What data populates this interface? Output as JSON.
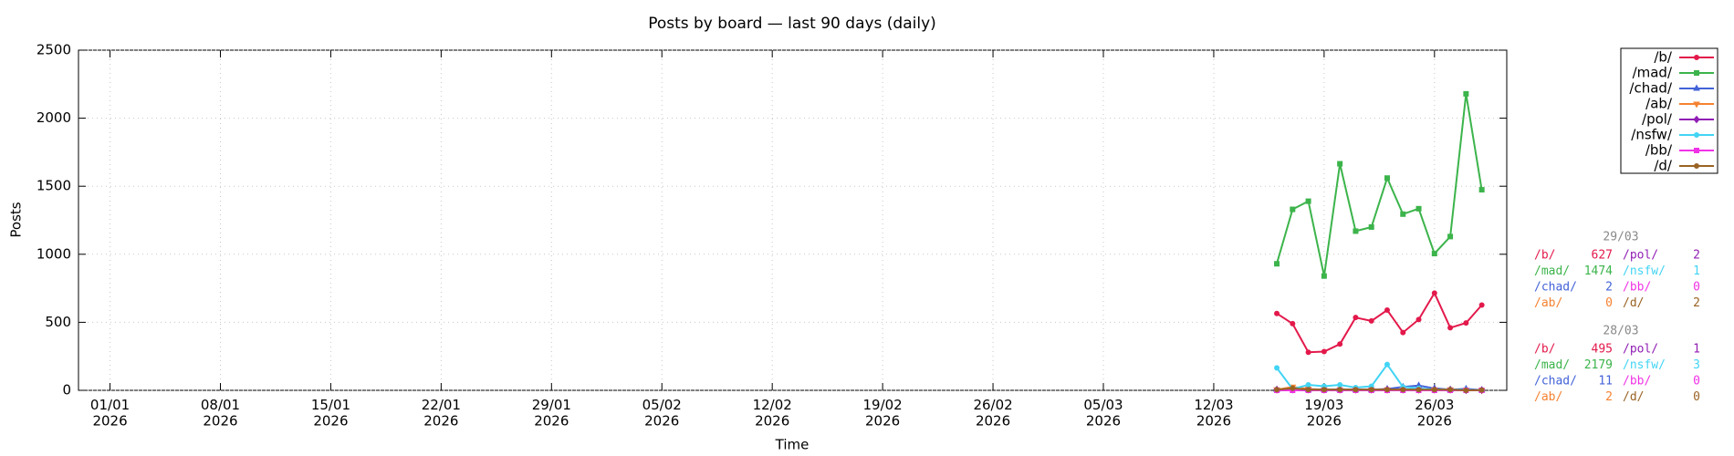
{
  "chart_data": {
    "type": "line",
    "title": "Posts by board — last 90 days (daily)",
    "xlabel": "Time",
    "ylabel": "Posts",
    "x": [
      "2026-03-16",
      "2026-03-17",
      "2026-03-18",
      "2026-03-19",
      "2026-03-20",
      "2026-03-21",
      "2026-03-22",
      "2026-03-23",
      "2026-03-24",
      "2026-03-25",
      "2026-03-26",
      "2026-03-27",
      "2026-03-28",
      "2026-03-29"
    ],
    "xlim": [
      "2025-12-30",
      "2026-03-30T14:00"
    ],
    "xticks": [
      {
        "value": "2026-01-01",
        "label": "01/01\n2026"
      },
      {
        "value": "2026-01-08",
        "label": "08/01\n2026"
      },
      {
        "value": "2026-01-15",
        "label": "15/01\n2026"
      },
      {
        "value": "2026-01-22",
        "label": "22/01\n2026"
      },
      {
        "value": "2026-01-29",
        "label": "29/01\n2026"
      },
      {
        "value": "2026-02-05",
        "label": "05/02\n2026"
      },
      {
        "value": "2026-02-12",
        "label": "12/02\n2026"
      },
      {
        "value": "2026-02-19",
        "label": "19/02\n2026"
      },
      {
        "value": "2026-02-26",
        "label": "26/02\n2026"
      },
      {
        "value": "2026-03-05",
        "label": "05/03\n2026"
      },
      {
        "value": "2026-03-12",
        "label": "12/03\n2026"
      },
      {
        "value": "2026-03-19",
        "label": "19/03\n2026"
      },
      {
        "value": "2026-03-26",
        "label": "26/03\n2026"
      }
    ],
    "ylim": [
      0,
      2500
    ],
    "yticks": [
      0,
      500,
      1000,
      1500,
      2000,
      2500
    ],
    "grid": true,
    "legend": "upper right outside",
    "series": [
      {
        "name": "/b/",
        "color": "#e3194b",
        "marker": "circle",
        "values": [
          565,
          490,
          280,
          285,
          340,
          535,
          510,
          590,
          425,
          520,
          715,
          460,
          495,
          627
        ]
      },
      {
        "name": "/mad/",
        "color": "#3cb44b",
        "marker": "square",
        "values": [
          930,
          1330,
          1390,
          840,
          1665,
          1170,
          1200,
          1560,
          1295,
          1335,
          1005,
          1130,
          2179,
          1474
        ]
      },
      {
        "name": "/chad/",
        "color": "#4363d8",
        "marker": "triangle",
        "values": [
          5,
          10,
          5,
          5,
          5,
          5,
          5,
          10,
          25,
          35,
          15,
          5,
          11,
          2
        ]
      },
      {
        "name": "/ab/",
        "color": "#f58231",
        "marker": "triangle-down",
        "values": [
          5,
          25,
          10,
          5,
          5,
          5,
          5,
          5,
          5,
          5,
          5,
          5,
          2,
          0
        ]
      },
      {
        "name": "/pol/",
        "color": "#911eb4",
        "marker": "diamond",
        "values": [
          5,
          5,
          5,
          5,
          5,
          5,
          5,
          5,
          5,
          5,
          5,
          5,
          1,
          2
        ]
      },
      {
        "name": "/nsfw/",
        "color": "#42d4f4",
        "marker": "circle",
        "values": [
          165,
          10,
          40,
          30,
          40,
          20,
          30,
          190,
          25,
          15,
          5,
          5,
          3,
          1
        ]
      },
      {
        "name": "/bb/",
        "color": "#f032e6",
        "marker": "square",
        "values": [
          0,
          0,
          0,
          0,
          0,
          0,
          0,
          0,
          0,
          0,
          0,
          0,
          0,
          0
        ]
      },
      {
        "name": "/d/",
        "color": "#9a6324",
        "marker": "circle",
        "values": [
          5,
          15,
          5,
          5,
          5,
          5,
          5,
          5,
          5,
          5,
          5,
          5,
          0,
          2
        ]
      }
    ]
  },
  "readouts": [
    {
      "date": "29/03",
      "entries": [
        {
          "label": "/b/",
          "value": "627"
        },
        {
          "label": "/mad/",
          "value": "1474"
        },
        {
          "label": "/chad/",
          "value": "2"
        },
        {
          "label": "/ab/",
          "value": "0"
        },
        {
          "label": "/pol/",
          "value": "2"
        },
        {
          "label": "/nsfw/",
          "value": "1"
        },
        {
          "label": "/bb/",
          "value": "0"
        },
        {
          "label": "/d/",
          "value": "2"
        }
      ]
    },
    {
      "date": "28/03",
      "entries": [
        {
          "label": "/b/",
          "value": "495"
        },
        {
          "label": "/mad/",
          "value": "2179"
        },
        {
          "label": "/chad/",
          "value": "11"
        },
        {
          "label": "/ab/",
          "value": "2"
        },
        {
          "label": "/pol/",
          "value": "1"
        },
        {
          "label": "/nsfw/",
          "value": "3"
        },
        {
          "label": "/bb/",
          "value": "0"
        },
        {
          "label": "/d/",
          "value": "0"
        }
      ]
    }
  ]
}
